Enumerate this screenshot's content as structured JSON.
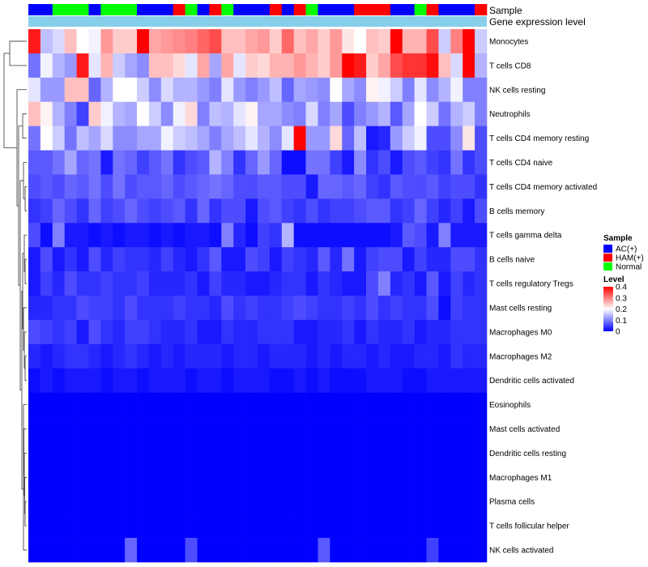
{
  "chart_data": {
    "type": "heatmap",
    "title": "",
    "annotation_labels": {
      "sample": "Sample",
      "expression": "Gene expression level"
    },
    "sample_groups": [
      "AC(+)",
      "AC(+)",
      "Normal",
      "Normal",
      "Normal",
      "AC(+)",
      "Normal",
      "Normal",
      "Normal",
      "AC(+)",
      "AC(+)",
      "AC(+)",
      "HAM(+)",
      "Normal",
      "AC(+)",
      "HAM(+)",
      "Normal",
      "AC(+)",
      "AC(+)",
      "AC(+)",
      "HAM(+)",
      "AC(+)",
      "HAM(+)",
      "Normal",
      "AC(+)",
      "AC(+)",
      "AC(+)",
      "HAM(+)",
      "HAM(+)",
      "HAM(+)",
      "AC(+)",
      "AC(+)",
      "Normal",
      "HAM(+)",
      "AC(+)",
      "AC(+)",
      "AC(+)",
      "HAM(+)"
    ],
    "rows": [
      "Monocytes",
      "T cells CD8",
      "NK cells resting",
      "Neutrophils",
      "T cells CD4 memory resting",
      "T cells CD4 naive",
      "T cells CD4 memory activated",
      "B cells memory",
      "T cells gamma delta",
      "B cells naive",
      "T cells regulatory  Tregs",
      "Mast cells resting",
      "Macrophages M0",
      "Macrophages M2",
      "Dendritic cells activated",
      "Eosinophils",
      "Mast cells activated",
      "Dendritic cells resting",
      "Macrophages M1",
      "Plasma cells",
      "T cells follicular helper",
      "NK cells activated"
    ],
    "values": [
      [
        0.38,
        0.15,
        0.17,
        0.25,
        0.2,
        0.19,
        0.28,
        0.24,
        0.24,
        0.4,
        0.27,
        0.28,
        0.29,
        0.3,
        0.32,
        0.34,
        0.25,
        0.25,
        0.27,
        0.28,
        0.24,
        0.32,
        0.25,
        0.27,
        0.24,
        0.28,
        0.22,
        0.2,
        0.25,
        0.24,
        0.4,
        0.26,
        0.26,
        0.34,
        0.16,
        0.3,
        0.4,
        0.16
      ],
      [
        0.09,
        0.19,
        0.14,
        0.12,
        0.38,
        0.18,
        0.26,
        0.16,
        0.13,
        0.11,
        0.25,
        0.25,
        0.23,
        0.18,
        0.27,
        0.13,
        0.27,
        0.18,
        0.24,
        0.23,
        0.26,
        0.26,
        0.28,
        0.26,
        0.24,
        0.28,
        0.4,
        0.38,
        0.24,
        0.27,
        0.34,
        0.36,
        0.36,
        0.39,
        0.25,
        0.17,
        0.4,
        0.14
      ],
      [
        0.18,
        0.12,
        0.12,
        0.25,
        0.25,
        0.08,
        0.14,
        0.2,
        0.2,
        0.16,
        0.11,
        0.17,
        0.14,
        0.14,
        0.12,
        0.1,
        0.18,
        0.12,
        0.1,
        0.12,
        0.15,
        0.08,
        0.13,
        0.12,
        0.11,
        0.2,
        0.13,
        0.11,
        0.21,
        0.19,
        0.16,
        0.1,
        0.18,
        0.11,
        0.14,
        0.19,
        0.1,
        0.1
      ],
      [
        0.25,
        0.21,
        0.14,
        0.1,
        0.05,
        0.24,
        0.19,
        0.14,
        0.13,
        0.2,
        0.16,
        0.11,
        0.19,
        0.23,
        0.1,
        0.15,
        0.14,
        0.18,
        0.21,
        0.13,
        0.13,
        0.11,
        0.1,
        0.17,
        0.1,
        0.13,
        0.06,
        0.1,
        0.12,
        0.14,
        0.07,
        0.13,
        0.2,
        0.16,
        0.09,
        0.14,
        0.16,
        0.1
      ],
      [
        0.09,
        0.2,
        0.16,
        0.09,
        0.15,
        0.13,
        0.17,
        0.11,
        0.11,
        0.13,
        0.13,
        0.19,
        0.16,
        0.15,
        0.13,
        0.1,
        0.13,
        0.15,
        0.18,
        0.14,
        0.11,
        0.18,
        0.4,
        0.12,
        0.12,
        0.23,
        0.08,
        0.15,
        0.02,
        0.03,
        0.12,
        0.16,
        0.19,
        0.06,
        0.06,
        0.11,
        0.22,
        0.06
      ],
      [
        0.07,
        0.07,
        0.09,
        0.13,
        0.08,
        0.09,
        0.02,
        0.09,
        0.08,
        0.05,
        0.07,
        0.09,
        0.04,
        0.06,
        0.07,
        0.14,
        0.1,
        0.04,
        0.08,
        0.12,
        0.08,
        0.01,
        0.01,
        0.09,
        0.09,
        0.05,
        0.02,
        0.11,
        0.04,
        0.06,
        0.02,
        0.06,
        0.07,
        0.05,
        0.04,
        0.09,
        0.04,
        0.06
      ],
      [
        0.06,
        0.07,
        0.06,
        0.08,
        0.07,
        0.09,
        0.06,
        0.09,
        0.06,
        0.07,
        0.07,
        0.08,
        0.06,
        0.07,
        0.08,
        0.09,
        0.08,
        0.06,
        0.06,
        0.07,
        0.07,
        0.06,
        0.06,
        0.02,
        0.08,
        0.08,
        0.07,
        0.08,
        0.05,
        0.04,
        0.07,
        0.06,
        0.06,
        0.07,
        0.05,
        0.06,
        0.06,
        0.04
      ],
      [
        0.04,
        0.05,
        0.08,
        0.06,
        0.04,
        0.08,
        0.05,
        0.06,
        0.08,
        0.06,
        0.05,
        0.06,
        0.07,
        0.04,
        0.08,
        0.04,
        0.06,
        0.06,
        0.02,
        0.06,
        0.07,
        0.05,
        0.04,
        0.06,
        0.04,
        0.05,
        0.05,
        0.06,
        0.07,
        0.07,
        0.04,
        0.05,
        0.08,
        0.05,
        0.03,
        0.05,
        0.02,
        0.06
      ],
      [
        0.06,
        0.01,
        0.1,
        0.02,
        0.02,
        0.01,
        0.02,
        0.01,
        0.02,
        0.02,
        0.01,
        0.02,
        0.01,
        0.02,
        0.02,
        0.01,
        0.1,
        0.03,
        0.01,
        0.05,
        0.04,
        0.14,
        0.01,
        0.01,
        0.01,
        0.01,
        0.01,
        0.01,
        0.01,
        0.01,
        0.02,
        0.07,
        0.06,
        0.02,
        0.1,
        0.02,
        0.02,
        0.02
      ],
      [
        0.02,
        0.06,
        0.02,
        0.04,
        0.02,
        0.06,
        0.03,
        0.05,
        0.04,
        0.04,
        0.03,
        0.05,
        0.03,
        0.02,
        0.04,
        0.07,
        0.02,
        0.02,
        0.06,
        0.05,
        0.02,
        0.05,
        0.04,
        0.03,
        0.07,
        0.03,
        0.09,
        0.02,
        0.05,
        0.06,
        0.06,
        0.02,
        0.05,
        0.03,
        0.03,
        0.06,
        0.06,
        0.04
      ],
      [
        0.02,
        0.05,
        0.03,
        0.06,
        0.04,
        0.04,
        0.05,
        0.04,
        0.04,
        0.05,
        0.03,
        0.03,
        0.03,
        0.04,
        0.02,
        0.05,
        0.03,
        0.03,
        0.02,
        0.02,
        0.03,
        0.04,
        0.04,
        0.02,
        0.04,
        0.03,
        0.02,
        0.02,
        0.06,
        0.1,
        0.03,
        0.04,
        0.02,
        0.07,
        0.02,
        0.05,
        0.03,
        0.04
      ],
      [
        0.03,
        0.03,
        0.04,
        0.04,
        0.06,
        0.05,
        0.05,
        0.04,
        0.06,
        0.04,
        0.04,
        0.04,
        0.05,
        0.04,
        0.04,
        0.03,
        0.06,
        0.04,
        0.05,
        0.04,
        0.04,
        0.05,
        0.06,
        0.05,
        0.04,
        0.04,
        0.05,
        0.04,
        0.06,
        0.04,
        0.05,
        0.04,
        0.04,
        0.06,
        0.01,
        0.05,
        0.04,
        0.04
      ],
      [
        0.06,
        0.05,
        0.04,
        0.05,
        0.02,
        0.06,
        0.04,
        0.03,
        0.05,
        0.05,
        0.04,
        0.03,
        0.03,
        0.04,
        0.02,
        0.02,
        0.04,
        0.03,
        0.03,
        0.04,
        0.04,
        0.04,
        0.02,
        0.02,
        0.03,
        0.03,
        0.04,
        0.02,
        0.04,
        0.03,
        0.03,
        0.04,
        0.02,
        0.03,
        0.03,
        0.04,
        0.04,
        0.04
      ],
      [
        0.03,
        0.02,
        0.03,
        0.04,
        0.04,
        0.03,
        0.02,
        0.03,
        0.04,
        0.03,
        0.02,
        0.03,
        0.02,
        0.03,
        0.03,
        0.03,
        0.02,
        0.03,
        0.03,
        0.02,
        0.03,
        0.03,
        0.03,
        0.02,
        0.03,
        0.02,
        0.03,
        0.03,
        0.02,
        0.03,
        0.02,
        0.02,
        0.03,
        0.03,
        0.02,
        0.04,
        0.03,
        0.03
      ],
      [
        0.01,
        0.02,
        0.01,
        0.02,
        0.02,
        0.02,
        0.01,
        0.02,
        0.02,
        0.01,
        0.02,
        0.02,
        0.02,
        0.01,
        0.02,
        0.02,
        0.01,
        0.02,
        0.02,
        0.02,
        0.01,
        0.01,
        0.02,
        0.01,
        0.02,
        0.01,
        0.01,
        0.01,
        0.02,
        0.02,
        0.02,
        0.01,
        0.01,
        0.02,
        0.02,
        0.02,
        0.02,
        0.02
      ],
      [
        0,
        0,
        0,
        0,
        0,
        0,
        0,
        0,
        0,
        0,
        0,
        0,
        0,
        0,
        0,
        0,
        0,
        0,
        0,
        0,
        0,
        0,
        0,
        0,
        0,
        0,
        0,
        0,
        0,
        0,
        0,
        0,
        0,
        0,
        0,
        0,
        0,
        0
      ],
      [
        0,
        0,
        0,
        0,
        0,
        0,
        0,
        0,
        0,
        0,
        0,
        0,
        0,
        0,
        0,
        0,
        0,
        0,
        0,
        0,
        0,
        0,
        0,
        0,
        0,
        0,
        0,
        0,
        0,
        0,
        0,
        0,
        0,
        0,
        0,
        0,
        0,
        0
      ],
      [
        0,
        0,
        0,
        0,
        0,
        0,
        0,
        0,
        0,
        0,
        0,
        0,
        0,
        0,
        0,
        0,
        0,
        0,
        0,
        0,
        0,
        0,
        0,
        0,
        0,
        0,
        0,
        0,
        0,
        0,
        0,
        0,
        0,
        0,
        0,
        0,
        0,
        0
      ],
      [
        0,
        0,
        0,
        0,
        0,
        0,
        0,
        0,
        0,
        0,
        0,
        0,
        0,
        0,
        0,
        0,
        0,
        0,
        0,
        0,
        0,
        0,
        0,
        0,
        0,
        0,
        0,
        0,
        0,
        0,
        0,
        0,
        0,
        0,
        0,
        0,
        0,
        0
      ],
      [
        0,
        0,
        0,
        0,
        0,
        0,
        0,
        0,
        0,
        0,
        0,
        0,
        0,
        0,
        0,
        0,
        0,
        0,
        0,
        0,
        0,
        0,
        0,
        0,
        0,
        0,
        0,
        0,
        0,
        0,
        0,
        0,
        0,
        0,
        0,
        0,
        0,
        0
      ],
      [
        0,
        0,
        0,
        0,
        0,
        0,
        0,
        0,
        0,
        0,
        0,
        0,
        0,
        0,
        0,
        0,
        0,
        0,
        0,
        0,
        0,
        0,
        0,
        0,
        0,
        0,
        0,
        0,
        0,
        0,
        0,
        0,
        0,
        0,
        0,
        0,
        0,
        0
      ],
      [
        0,
        0,
        0,
        0,
        0,
        0,
        0,
        0,
        0.08,
        0,
        0,
        0,
        0,
        0.06,
        0,
        0,
        0,
        0,
        0,
        0,
        0,
        0,
        0,
        0,
        0.07,
        0,
        0,
        0,
        0,
        0,
        0,
        0,
        0,
        0.05,
        0,
        0,
        0,
        0
      ]
    ],
    "color_scale": {
      "min": 0,
      "mid": 0.2,
      "max": 0.4,
      "low_color": "#0000ff",
      "mid_color": "#ffffff",
      "high_color": "#ff0000"
    },
    "expression_bar_color": "#87ceeb",
    "legend_sample": {
      "title": "Sample",
      "items": [
        {
          "label": "AC(+)",
          "color": "#0000ff"
        },
        {
          "label": "HAM(+)",
          "color": "#ff0000"
        },
        {
          "label": "Normal",
          "color": "#00ff00"
        }
      ]
    },
    "legend_level": {
      "title": "Level",
      "ticks": [
        0,
        0.1,
        0.2,
        0.3,
        0.4
      ]
    }
  }
}
